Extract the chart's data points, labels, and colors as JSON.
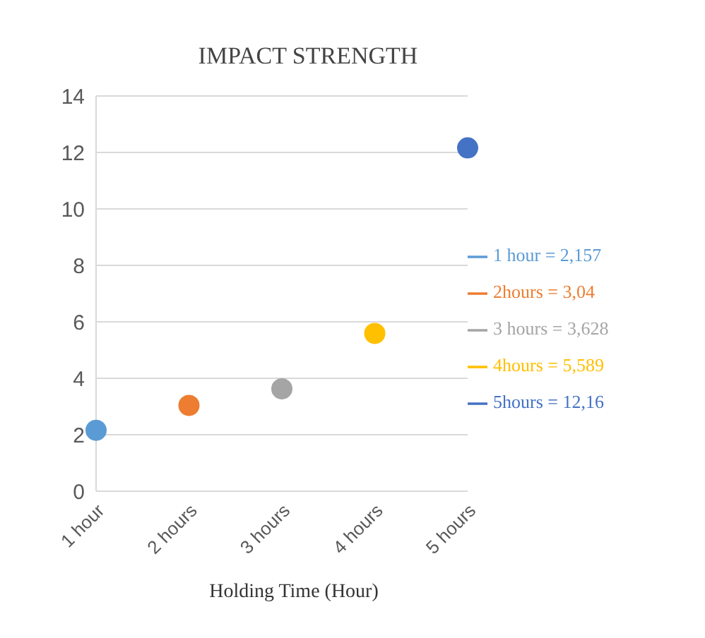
{
  "chart_data": {
    "type": "line",
    "title": "IMPACT STRENGTH",
    "xlabel": "Holding Time  (Hour)",
    "categories": [
      "1 hour",
      "2 hours",
      "3 hours",
      "4 hours",
      "5 hours"
    ],
    "series": [
      {
        "name": "1 hour = 2,157",
        "color": "#5b9bd5",
        "values": [
          2.157,
          null,
          null,
          null,
          null
        ]
      },
      {
        "name": "2hours = 3,04",
        "color": "#ed7d31",
        "values": [
          null,
          3.04,
          null,
          null,
          null
        ]
      },
      {
        "name": "3 hours = 3,628",
        "color": "#a5a5a5",
        "values": [
          null,
          null,
          3.628,
          null,
          null
        ]
      },
      {
        "name": "4hours = 5,589",
        "color": "#ffc000",
        "values": [
          null,
          null,
          null,
          5.589,
          null
        ]
      },
      {
        "name": "5hours = 12,16",
        "color": "#4472c4",
        "values": [
          null,
          null,
          null,
          null,
          12.16
        ]
      }
    ],
    "ylim": [
      0,
      14
    ],
    "yticks": [
      0,
      2,
      4,
      6,
      8,
      10,
      12,
      14
    ],
    "grid": "y",
    "legend": "right",
    "marker": "circle"
  }
}
